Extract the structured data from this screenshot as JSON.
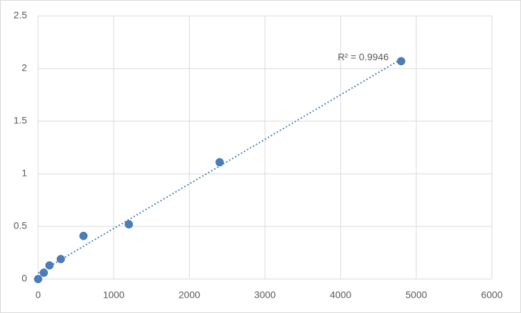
{
  "chart_data": {
    "type": "scatter",
    "series": [
      {
        "color": "#4a7ebb",
        "x": [
          0,
          75,
          150,
          300,
          600,
          1200,
          2400,
          4800
        ],
        "values": [
          0,
          0.06,
          0.13,
          0.19,
          0.41,
          0.52,
          1.11,
          2.07
        ]
      }
    ],
    "trendline": {
      "type": "linear",
      "label": "R² = 0.9946",
      "style": "dotted"
    },
    "xlim": [
      0,
      6000
    ],
    "xticks": [
      0,
      1000,
      2000,
      3000,
      4000,
      5000,
      6000
    ],
    "ylim": [
      0,
      2.5
    ],
    "yticks": [
      0,
      0.5,
      1,
      1.5,
      2,
      2.5
    ],
    "grid": true
  }
}
